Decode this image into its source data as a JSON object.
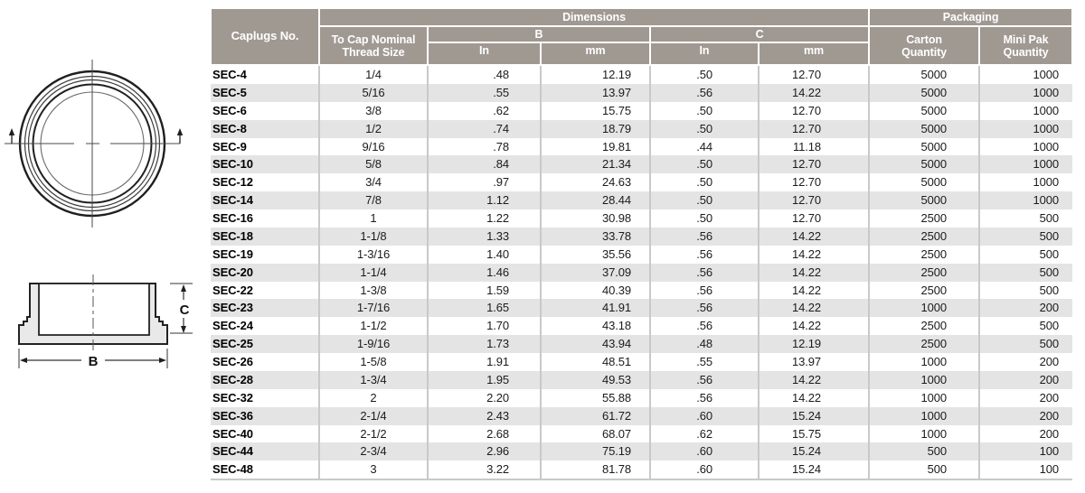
{
  "header": {
    "caplugs_no": "Caplugs No.",
    "dimensions": "Dimensions",
    "packaging": "Packaging",
    "to_cap_line1": "To Cap Nominal",
    "to_cap_line2": "Thread Size",
    "b": "B",
    "c": "C",
    "in": "In",
    "mm": "mm",
    "carton_line1": "Carton",
    "carton_line2": "Quantity",
    "minipak_line1": "Mini Pak",
    "minipak_line2": "Quantity"
  },
  "column_keys": [
    "caplugs-no",
    "thread-size",
    "b-in",
    "b-mm",
    "c-in",
    "c-mm",
    "carton-qty",
    "mini-pak-qty"
  ],
  "rows": [
    [
      "SEC-4",
      "1/4",
      ".48",
      "12.19",
      ".50",
      "12.70",
      "5000",
      "1000"
    ],
    [
      "SEC-5",
      "5/16",
      ".55",
      "13.97",
      ".56",
      "14.22",
      "5000",
      "1000"
    ],
    [
      "SEC-6",
      "3/8",
      ".62",
      "15.75",
      ".50",
      "12.70",
      "5000",
      "1000"
    ],
    [
      "SEC-8",
      "1/2",
      ".74",
      "18.79",
      ".50",
      "12.70",
      "5000",
      "1000"
    ],
    [
      "SEC-9",
      "9/16",
      ".78",
      "19.81",
      ".44",
      "11.18",
      "5000",
      "1000"
    ],
    [
      "SEC-10",
      "5/8",
      ".84",
      "21.34",
      ".50",
      "12.70",
      "5000",
      "1000"
    ],
    [
      "SEC-12",
      "3/4",
      ".97",
      "24.63",
      ".50",
      "12.70",
      "5000",
      "1000"
    ],
    [
      "SEC-14",
      "7/8",
      "1.12",
      "28.44",
      ".50",
      "12.70",
      "5000",
      "1000"
    ],
    [
      "SEC-16",
      "1",
      "1.22",
      "30.98",
      ".50",
      "12.70",
      "2500",
      "500"
    ],
    [
      "SEC-18",
      "1-1/8",
      "1.33",
      "33.78",
      ".56",
      "14.22",
      "2500",
      "500"
    ],
    [
      "SEC-19",
      "1-3/16",
      "1.40",
      "35.56",
      ".56",
      "14.22",
      "2500",
      "500"
    ],
    [
      "SEC-20",
      "1-1/4",
      "1.46",
      "37.09",
      ".56",
      "14.22",
      "2500",
      "500"
    ],
    [
      "SEC-22",
      "1-3/8",
      "1.59",
      "40.39",
      ".56",
      "14.22",
      "2500",
      "500"
    ],
    [
      "SEC-23",
      "1-7/16",
      "1.65",
      "41.91",
      ".56",
      "14.22",
      "1000",
      "200"
    ],
    [
      "SEC-24",
      "1-1/2",
      "1.70",
      "43.18",
      ".56",
      "14.22",
      "2500",
      "500"
    ],
    [
      "SEC-25",
      "1-9/16",
      "1.73",
      "43.94",
      ".48",
      "12.19",
      "2500",
      "500"
    ],
    [
      "SEC-26",
      "1-5/8",
      "1.91",
      "48.51",
      ".55",
      "13.97",
      "1000",
      "200"
    ],
    [
      "SEC-28",
      "1-3/4",
      "1.95",
      "49.53",
      ".56",
      "14.22",
      "1000",
      "200"
    ],
    [
      "SEC-32",
      "2",
      "2.20",
      "55.88",
      ".56",
      "14.22",
      "1000",
      "200"
    ],
    [
      "SEC-36",
      "2-1/4",
      "2.43",
      "61.72",
      ".60",
      "15.24",
      "1000",
      "200"
    ],
    [
      "SEC-40",
      "2-1/2",
      "2.68",
      "68.07",
      ".62",
      "15.75",
      "1000",
      "200"
    ],
    [
      "SEC-44",
      "2-3/4",
      "2.96",
      "75.19",
      ".60",
      "15.24",
      "500",
      "100"
    ],
    [
      "SEC-48",
      "3",
      "3.22",
      "81.78",
      ".60",
      "15.24",
      "500",
      "100"
    ]
  ],
  "diagram": {
    "b_label": "B",
    "c_label": "C"
  },
  "colors": {
    "header_bg": "#a09992",
    "row_alt": "#e4e4e4",
    "grid_line": "#c9c9c9",
    "header_text": "#ffffff",
    "body_text": "#1b1b1b"
  }
}
